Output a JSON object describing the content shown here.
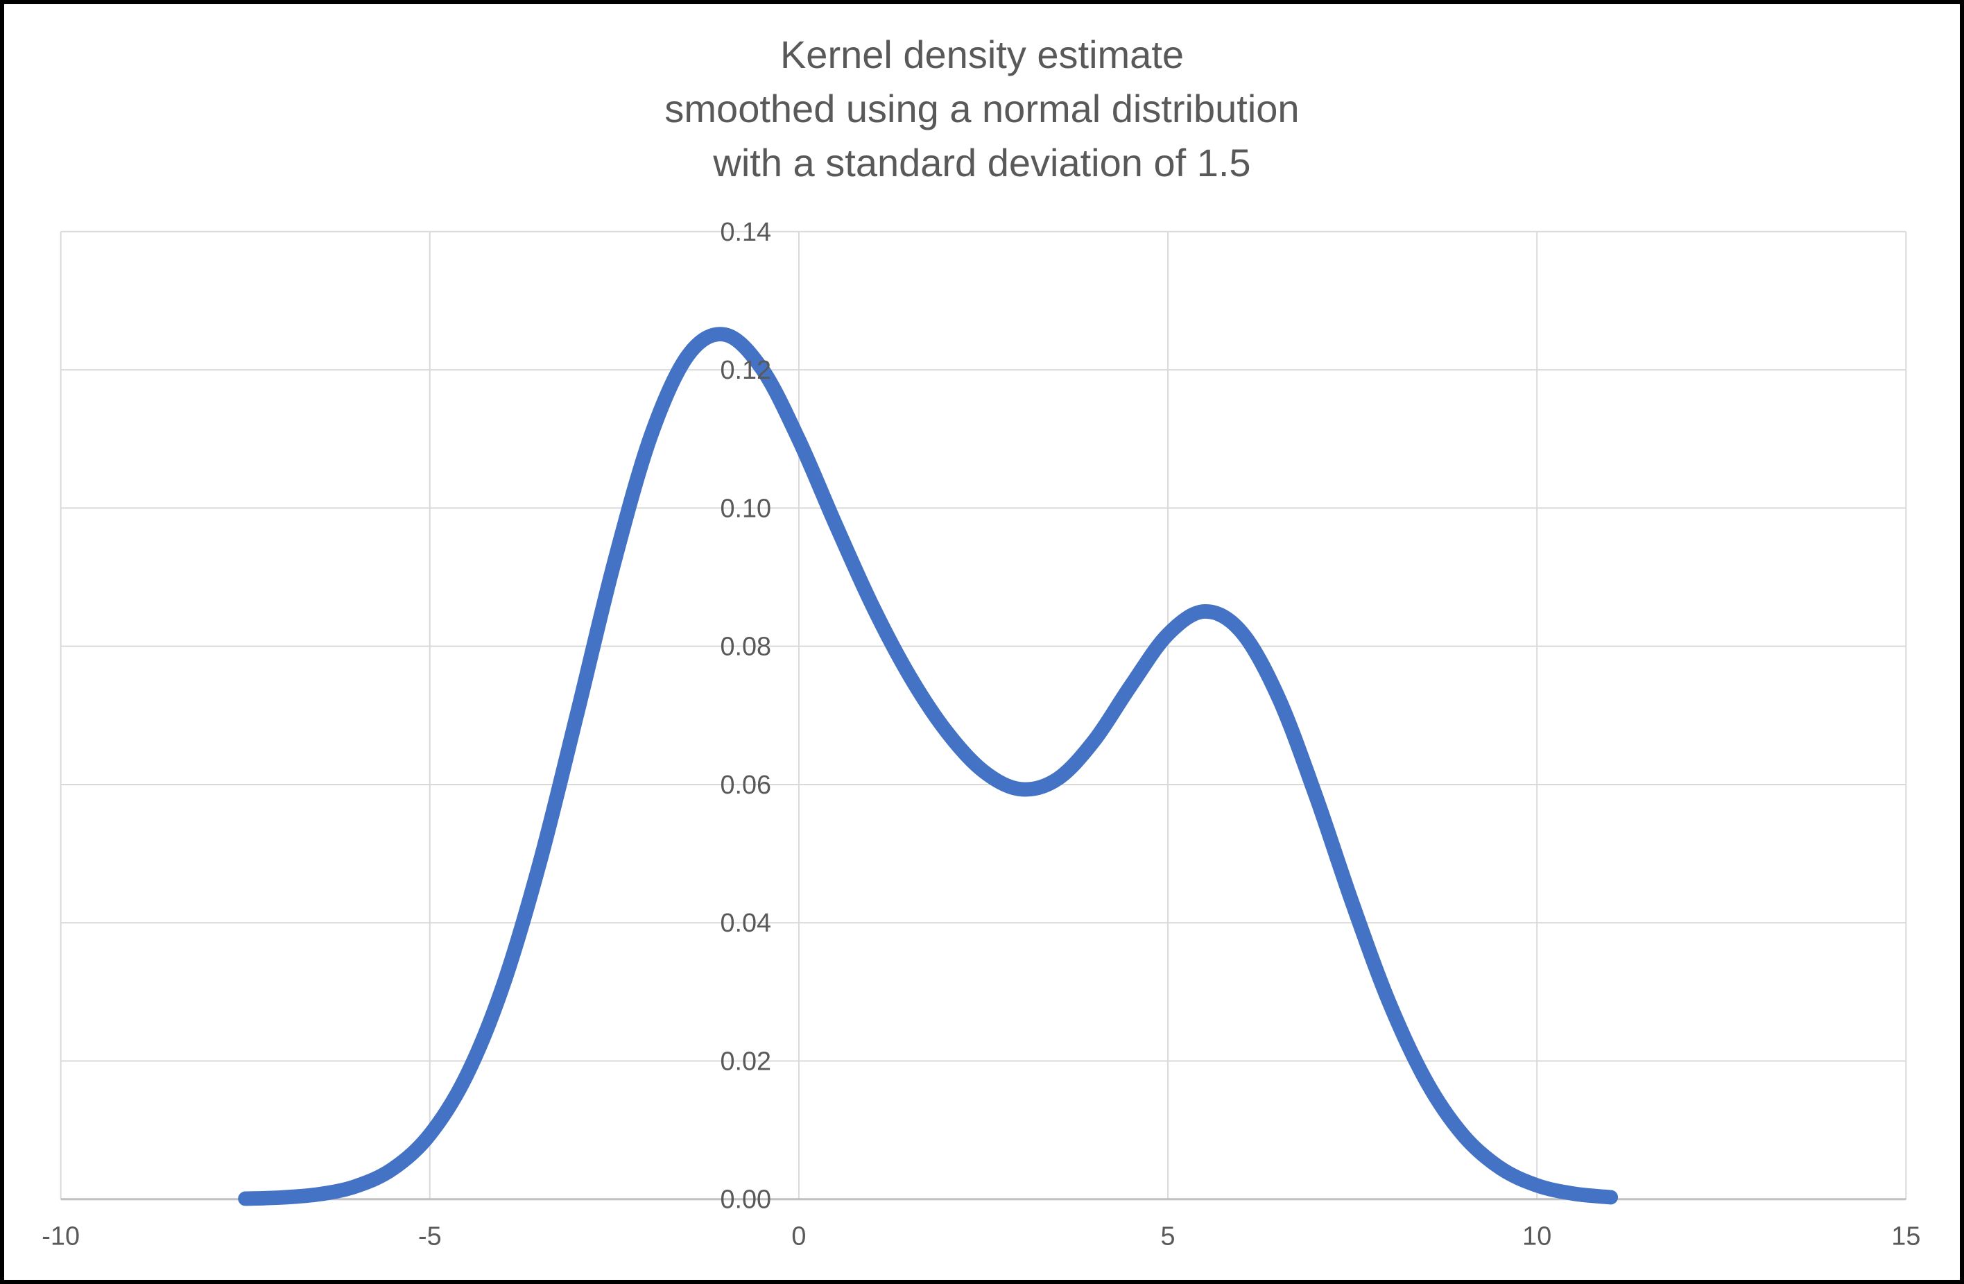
{
  "window": {
    "background": "#FFFFFF",
    "frame_color": "#000000"
  },
  "chart_data": {
    "type": "line",
    "title": "Kernel density estimate smoothed using a normal distribution with a standard deviation of 1.5",
    "title_lines": [
      "Kernel density estimate",
      "smoothed using a normal distribution",
      "with a standard deviation of 1.5"
    ],
    "xlabel": "",
    "ylabel": "",
    "xlim": [
      -10,
      15
    ],
    "ylim": [
      0,
      0.14
    ],
    "xticks": [
      -10,
      -5,
      0,
      5,
      10,
      15
    ],
    "xtick_labels": [
      "-10",
      "-5",
      "0",
      "5",
      "10",
      "15"
    ],
    "yticks": [
      0,
      0.02,
      0.04,
      0.06,
      0.08,
      0.1,
      0.12,
      0.14
    ],
    "ytick_labels": [
      "0.00",
      "0.02",
      "0.04",
      "0.06",
      "0.08",
      "0.10",
      "0.12",
      "0.14"
    ],
    "grid": true,
    "legend": "none",
    "series": [
      {
        "name": "kernel-density-estimate",
        "color": "#4472C4",
        "stroke_width": 21,
        "x": [
          -7.5,
          -7,
          -6.5,
          -6,
          -5.5,
          -5,
          -4.5,
          -4,
          -3.5,
          -3,
          -2.5,
          -2,
          -1.5,
          -1,
          -0.5,
          0,
          0.5,
          1,
          1.5,
          2,
          2.5,
          3,
          3.5,
          4,
          4.5,
          5,
          5.5,
          6,
          6.5,
          7,
          7.5,
          8,
          8.5,
          9,
          9.5,
          10,
          10.5,
          11
        ],
        "y": [
          8e-05,
          0.00025,
          0.00072,
          0.00188,
          0.00441,
          0.00935,
          0.01794,
          0.03115,
          0.0491,
          0.07043,
          0.0922,
          0.11059,
          0.12213,
          0.12509,
          0.12014,
          0.10988,
          0.09758,
          0.08579,
          0.07572,
          0.06767,
          0.06193,
          0.05933,
          0.06078,
          0.06633,
          0.07435,
          0.08173,
          0.08504,
          0.08202,
          0.07253,
          0.05846,
          0.04282,
          0.02843,
          0.01708,
          0.00927,
          0.00454,
          0.002,
          0.0008,
          0.00028
        ]
      }
    ],
    "colors": {
      "gridline": "#D9D9D9",
      "axis_line": "#BFBFBF",
      "tick_label": "#595959",
      "title": "#595959"
    }
  }
}
